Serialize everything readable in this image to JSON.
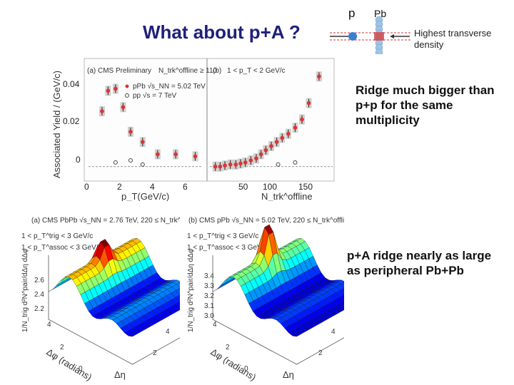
{
  "slide": {
    "title": "What about p+A ?",
    "note_ridge_bigger": "Ridge much bigger than p+p for the same multiplicity",
    "note_pa_ridge": "p+A ridge nearly as large as peripheral Pb+Pb"
  },
  "schematic": {
    "label_p": "p",
    "label_pb": "Pb",
    "label_density_1": "Highest transverse",
    "label_density_2": "density",
    "colors": {
      "proton": "#3c7fd0",
      "lead": "#9ec4e6",
      "overlap": "#d14b4b"
    }
  },
  "yield_plot": {
    "y_axis_label": "Associated Yield / (GeV/c)",
    "panel_a": {
      "label": "(a) CMS Preliminary",
      "cut": "N_trk^offline ≥ 110",
      "legend_pPb": "pPb √s_NN = 5.02 TeV",
      "legend_pp": "pp √s = 7 TeV",
      "x_axis_label": "p_T(GeV/c)",
      "y_ticks": [
        "0.04",
        "0.02",
        "0"
      ],
      "x_ticks": [
        "0",
        "2",
        "4",
        "6"
      ]
    },
    "panel_b": {
      "label": "(b)",
      "cut": "1 < p_T < 2 GeV/c",
      "x_axis_label": "N_trk^offline",
      "x_ticks": [
        "50",
        "100",
        "150"
      ]
    }
  },
  "surface_plots": {
    "left": {
      "header": "(a) CMS PbPb √s_NN = 2.76 TeV, 220 ≤ N_trk^offline < 260",
      "cut_trig": "1 < p_T^trig < 3 GeV/c",
      "cut_assoc": "1 < p_T^assoc < 3 GeV/c",
      "z_label": "1/N_trig d²N^pair/dΔη dΔφ",
      "z_ticks": [
        "2.6",
        "2.4",
        "2.2"
      ],
      "phi_label": "Δφ (radians)",
      "eta_label": "Δη",
      "axis_ticks": [
        "4",
        "2",
        "0",
        "2",
        "4"
      ]
    },
    "right": {
      "header": "(b) CMS pPb √s_NN = 5.02 TeV, 220 ≤ N_trk^offline < 260",
      "cut_trig": "1 < p_T^trig < 3 GeV/c",
      "cut_assoc": "1 < p_T^assoc < 3 GeV/c",
      "z_label": "1/N_trig d²N^pair/dΔη dΔφ",
      "z_ticks": [
        "3.4",
        "3.3",
        "3.2",
        "3.1",
        "3.0"
      ],
      "phi_label": "Δφ (radians)",
      "eta_label": "Δη",
      "axis_ticks": [
        "4",
        "2",
        "0",
        "2",
        "4"
      ]
    }
  },
  "chart_data": [
    {
      "type": "scatter",
      "title": "(a) CMS Preliminary",
      "xlabel": "p_T(GeV/c)",
      "ylabel": "Associated Yield / (GeV/c)",
      "xlim": [
        -0.3,
        7.3
      ],
      "ylim": [
        -0.005,
        0.05
      ],
      "series": [
        {
          "name": "pPb √s_NN = 5.02 TeV",
          "x": [
            0.6,
            1.0,
            1.5,
            2.0,
            2.5,
            3.3,
            4.3,
            5.5,
            6.8
          ],
          "y": [
            0.027,
            0.037,
            0.038,
            0.029,
            0.017,
            0.012,
            0.006,
            0.006,
            0.005
          ]
        },
        {
          "name": "pp √s = 7 TeV",
          "x": [
            1.5,
            2.5,
            3.3
          ],
          "y": [
            0.002,
            0.003,
            0.001
          ]
        }
      ]
    },
    {
      "type": "scatter",
      "title": "(b) 1 < p_T < 2 GeV/c",
      "xlabel": "N_trk^offline",
      "ylabel": "Associated Yield / (GeV/c)",
      "xlim": [
        0,
        180
      ],
      "ylim": [
        -0.005,
        0.05
      ],
      "series": [
        {
          "name": "pPb √s_NN = 5.02 TeV",
          "x": [
            8,
            15,
            22,
            30,
            38,
            45,
            52,
            60,
            68,
            75,
            82,
            90,
            98,
            106,
            115,
            125,
            135,
            145,
            160
          ],
          "y": [
            0.0,
            0.0,
            0.0005,
            0.001,
            0.001,
            0.0015,
            0.002,
            0.003,
            0.004,
            0.006,
            0.008,
            0.01,
            0.012,
            0.014,
            0.016,
            0.019,
            0.023,
            0.031,
            0.044
          ]
        },
        {
          "name": "pp √s = 7 TeV",
          "x": [
            100,
            125
          ],
          "y": [
            0.001,
            0.002
          ]
        }
      ]
    }
  ]
}
